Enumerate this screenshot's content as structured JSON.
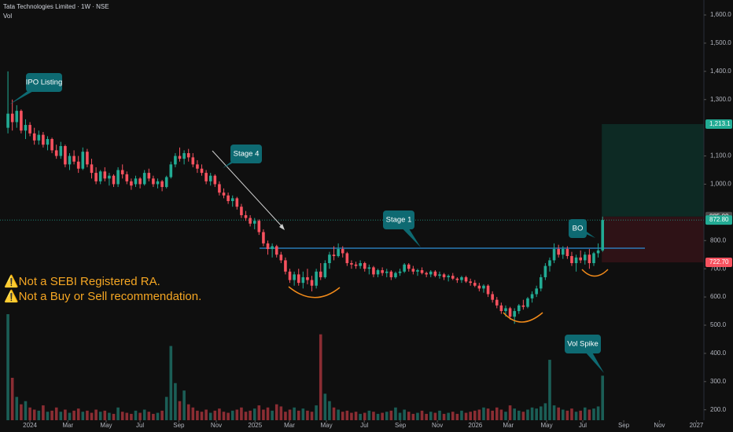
{
  "chart_data": {
    "type": "candlestick",
    "title": "Tata Technologies Limited · 1W · NSE",
    "subtitle": "Vol",
    "up_color": "#22ab94",
    "down_color": "#f7525f",
    "volume_up_color": "#1b5e56",
    "volume_down_color": "#8b2d33",
    "open": [
      1200,
      1250,
      1220,
      1260,
      1190,
      1210,
      1180,
      1155,
      1175,
      1140,
      1160,
      1120,
      1100,
      1135,
      1070,
      1100,
      1080,
      1055,
      1115,
      1070,
      1040,
      1010,
      1045,
      1020,
      1030,
      1000,
      1050,
      1035,
      1010,
      1000,
      1020,
      1000,
      1040,
      1020,
      1000,
      1010,
      990,
      1025,
      1070,
      1100,
      1090,
      1110,
      1095,
      1070,
      1055,
      1040,
      1010,
      1030,
      1000,
      970,
      960,
      940,
      950,
      920,
      890,
      880,
      860,
      870,
      830,
      790,
      770,
      780,
      750,
      730,
      690,
      660,
      680,
      650,
      670,
      660,
      640,
      690,
      670,
      720,
      750,
      745,
      770,
      755,
      720,
      715,
      710,
      720,
      700,
      705,
      680,
      695,
      685,
      690,
      670,
      685,
      690,
      715,
      700,
      690,
      695,
      685,
      680,
      690,
      675,
      680,
      670,
      675,
      665,
      660,
      670,
      655,
      650,
      640,
      630,
      640,
      610,
      590,
      570,
      550,
      560,
      530,
      550,
      570,
      565,
      595,
      610,
      630,
      670,
      710,
      730,
      770,
      750,
      770,
      745,
      720,
      740,
      730,
      750,
      720,
      755,
      765
    ],
    "high": [
      1400,
      1300,
      1280,
      1265,
      1230,
      1220,
      1200,
      1190,
      1185,
      1170,
      1165,
      1140,
      1150,
      1140,
      1110,
      1120,
      1100,
      1130,
      1125,
      1090,
      1060,
      1050,
      1060,
      1040,
      1035,
      1060,
      1070,
      1045,
      1020,
      1030,
      1025,
      1050,
      1055,
      1030,
      1020,
      1015,
      1030,
      1080,
      1110,
      1130,
      1120,
      1125,
      1110,
      1085,
      1070,
      1050,
      1040,
      1035,
      1010,
      985,
      970,
      960,
      955,
      930,
      905,
      890,
      880,
      875,
      840,
      800,
      790,
      785,
      760,
      740,
      700,
      690,
      700,
      690,
      700,
      675,
      700,
      720,
      730,
      760,
      780,
      790,
      780,
      760,
      730,
      725,
      730,
      725,
      715,
      710,
      700,
      705,
      700,
      695,
      690,
      700,
      720,
      720,
      710,
      700,
      705,
      690,
      695,
      695,
      690,
      685,
      680,
      685,
      670,
      675,
      675,
      665,
      660,
      650,
      645,
      645,
      620,
      600,
      580,
      570,
      565,
      560,
      575,
      590,
      600,
      620,
      640,
      680,
      720,
      740,
      790,
      785,
      780,
      780,
      760,
      750,
      765,
      760,
      770,
      760,
      790,
      885
    ],
    "low": [
      1180,
      1190,
      1200,
      1180,
      1160,
      1170,
      1140,
      1140,
      1130,
      1120,
      1110,
      1090,
      1090,
      1060,
      1050,
      1070,
      1040,
      1050,
      1060,
      1020,
      1000,
      1000,
      1010,
      995,
      990,
      990,
      1020,
      1000,
      980,
      990,
      985,
      995,
      1010,
      990,
      985,
      975,
      985,
      1020,
      1060,
      1080,
      1070,
      1080,
      1060,
      1040,
      1030,
      1000,
      995,
      990,
      960,
      950,
      930,
      920,
      910,
      880,
      870,
      850,
      840,
      820,
      780,
      750,
      740,
      740,
      720,
      680,
      650,
      640,
      640,
      630,
      645,
      620,
      630,
      660,
      665,
      700,
      730,
      740,
      740,
      710,
      700,
      700,
      700,
      690,
      680,
      670,
      670,
      675,
      670,
      660,
      665,
      675,
      685,
      690,
      680,
      675,
      680,
      670,
      670,
      670,
      665,
      660,
      655,
      660,
      650,
      650,
      650,
      640,
      635,
      620,
      615,
      600,
      580,
      560,
      540,
      530,
      520,
      505,
      540,
      555,
      560,
      580,
      600,
      620,
      660,
      690,
      720,
      740,
      735,
      735,
      710,
      690,
      720,
      715,
      700,
      710,
      740,
      760
    ],
    "close": [
      1250,
      1220,
      1260,
      1190,
      1210,
      1180,
      1155,
      1175,
      1140,
      1160,
      1120,
      1100,
      1135,
      1070,
      1100,
      1080,
      1055,
      1115,
      1070,
      1040,
      1010,
      1045,
      1020,
      1030,
      1000,
      1050,
      1035,
      1010,
      995,
      1020,
      1000,
      1040,
      1020,
      1000,
      1010,
      990,
      1025,
      1070,
      1100,
      1090,
      1110,
      1095,
      1070,
      1055,
      1040,
      1010,
      1030,
      1000,
      970,
      960,
      940,
      950,
      920,
      890,
      880,
      860,
      870,
      830,
      790,
      770,
      780,
      750,
      730,
      690,
      660,
      680,
      650,
      670,
      660,
      640,
      690,
      670,
      720,
      750,
      745,
      770,
      755,
      720,
      715,
      710,
      720,
      700,
      705,
      680,
      695,
      685,
      690,
      670,
      685,
      690,
      715,
      700,
      690,
      695,
      685,
      680,
      690,
      675,
      680,
      670,
      675,
      665,
      660,
      670,
      655,
      650,
      640,
      630,
      640,
      610,
      590,
      570,
      550,
      560,
      530,
      550,
      570,
      565,
      595,
      610,
      630,
      670,
      710,
      730,
      770,
      750,
      770,
      745,
      720,
      740,
      730,
      750,
      720,
      755,
      765,
      872.8
    ],
    "volume": [
      100,
      40,
      22,
      15,
      18,
      12,
      10,
      9,
      14,
      8,
      9,
      12,
      8,
      10,
      7,
      9,
      11,
      8,
      9,
      7,
      10,
      8,
      9,
      7,
      6,
      12,
      8,
      7,
      6,
      9,
      7,
      10,
      8,
      6,
      7,
      9,
      22,
      70,
      35,
      18,
      28,
      15,
      12,
      9,
      8,
      10,
      7,
      9,
      11,
      8,
      7,
      9,
      10,
      12,
      8,
      9,
      11,
      14,
      10,
      12,
      9,
      15,
      13,
      8,
      10,
      12,
      9,
      11,
      9,
      8,
      14,
      81,
      25,
      18,
      12,
      10,
      8,
      9,
      7,
      8,
      6,
      7,
      9,
      8,
      6,
      7,
      8,
      9,
      12,
      7,
      10,
      8,
      6,
      7,
      9,
      6,
      8,
      7,
      9,
      6,
      7,
      8,
      6,
      9,
      7,
      8,
      9,
      10,
      12,
      11,
      9,
      12,
      10,
      8,
      14,
      11,
      9,
      8,
      10,
      12,
      11,
      13,
      16,
      57,
      14,
      12,
      10,
      9,
      11,
      8,
      9,
      12,
      10,
      11,
      13,
      42
    ],
    "xlim": [
      -1.8,
      158
    ],
    "xticks": [
      {
        "value": 5,
        "label": "2024"
      },
      {
        "value": 13.6,
        "label": "Mar"
      },
      {
        "value": 22.3,
        "label": "May"
      },
      {
        "value": 30,
        "label": "Jul"
      },
      {
        "value": 38.8,
        "label": "Sep"
      },
      {
        "value": 47.3,
        "label": "Nov"
      },
      {
        "value": 56.1,
        "label": "2025"
      },
      {
        "value": 63.9,
        "label": "Mar"
      },
      {
        "value": 72.3,
        "label": "May"
      },
      {
        "value": 80.9,
        "label": "Jul"
      },
      {
        "value": 89.1,
        "label": "Sep"
      },
      {
        "value": 97.5,
        "label": "Nov"
      },
      {
        "value": 106.1,
        "label": "2026"
      },
      {
        "value": 113.6,
        "label": "Mar"
      },
      {
        "value": 122.3,
        "label": "May"
      },
      {
        "value": 130.5,
        "label": "Jul"
      },
      {
        "value": 139.8,
        "label": "Sep"
      },
      {
        "value": 147.9,
        "label": "Nov"
      },
      {
        "value": 156.3,
        "label": "2027"
      }
    ],
    "ylim": [
      163,
      1653
    ],
    "yticks": [
      {
        "value": 1600,
        "label": "1,600.0"
      },
      {
        "value": 1500,
        "label": "1,500.0"
      },
      {
        "value": 1400,
        "label": "1,400.0"
      },
      {
        "value": 1300,
        "label": "1,300.0"
      },
      {
        "value": 1100,
        "label": "1,100.0"
      },
      {
        "value": 1000,
        "label": "1,000.0"
      },
      {
        "value": 800,
        "label": "800.0"
      },
      {
        "value": 700,
        "label": "700.0"
      },
      {
        "value": 600,
        "label": "600.0"
      },
      {
        "value": 500,
        "label": "500.0"
      },
      {
        "value": 400,
        "label": "400.0"
      },
      {
        "value": 300,
        "label": "300.0"
      },
      {
        "value": 200,
        "label": "200.0"
      }
    ],
    "price_tags": [
      {
        "value": 1213.1,
        "label": "1,213.1",
        "color": "#22ab94"
      },
      {
        "value": 885,
        "label": "885.00",
        "color": "#4a4a4a"
      },
      {
        "value": 872.8,
        "label": "872.80",
        "color": "#22ab94"
      },
      {
        "value": 722.7,
        "label": "722.70",
        "color": "#f7525f"
      }
    ],
    "resistance": 773,
    "annotations": [
      "IPO Listing",
      "Stage 4",
      "Stage 1",
      "BO",
      "Vol Spike"
    ],
    "warnings": [
      "⚠️Not a SEBI Registered RA.",
      "⚠️Not a Buy or Sell recommendation."
    ]
  }
}
